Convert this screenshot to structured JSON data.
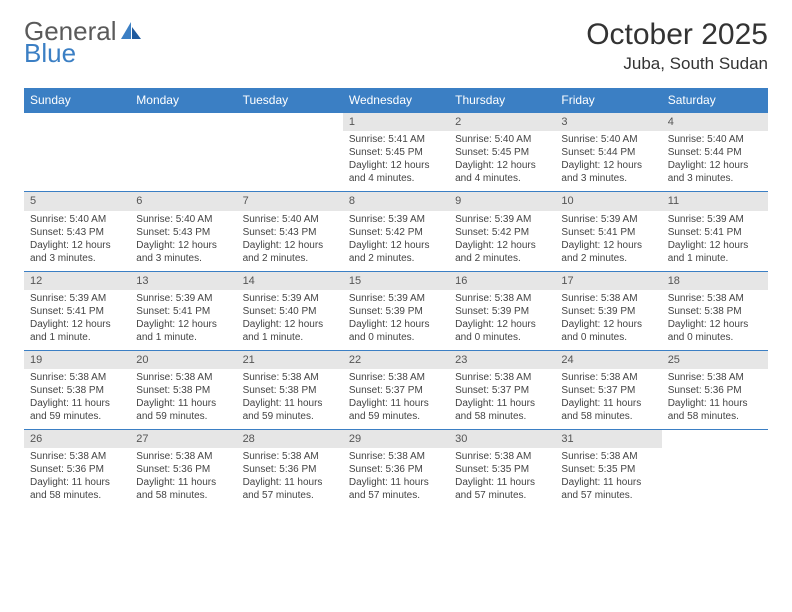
{
  "logo": {
    "line1": "General",
    "line2": "Blue"
  },
  "title": "October 2025",
  "location": "Juba, South Sudan",
  "colors": {
    "header_bg": "#3b7fc4",
    "header_fg": "#ffffff",
    "daynum_bg": "#e6e6e6",
    "divider": "#3b7fc4"
  },
  "weekdays": [
    "Sunday",
    "Monday",
    "Tuesday",
    "Wednesday",
    "Thursday",
    "Friday",
    "Saturday"
  ],
  "weeks": [
    [
      null,
      null,
      null,
      {
        "n": "1",
        "sunrise": "Sunrise: 5:41 AM",
        "sunset": "Sunset: 5:45 PM",
        "daylight": "Daylight: 12 hours and 4 minutes."
      },
      {
        "n": "2",
        "sunrise": "Sunrise: 5:40 AM",
        "sunset": "Sunset: 5:45 PM",
        "daylight": "Daylight: 12 hours and 4 minutes."
      },
      {
        "n": "3",
        "sunrise": "Sunrise: 5:40 AM",
        "sunset": "Sunset: 5:44 PM",
        "daylight": "Daylight: 12 hours and 3 minutes."
      },
      {
        "n": "4",
        "sunrise": "Sunrise: 5:40 AM",
        "sunset": "Sunset: 5:44 PM",
        "daylight": "Daylight: 12 hours and 3 minutes."
      }
    ],
    [
      {
        "n": "5",
        "sunrise": "Sunrise: 5:40 AM",
        "sunset": "Sunset: 5:43 PM",
        "daylight": "Daylight: 12 hours and 3 minutes."
      },
      {
        "n": "6",
        "sunrise": "Sunrise: 5:40 AM",
        "sunset": "Sunset: 5:43 PM",
        "daylight": "Daylight: 12 hours and 3 minutes."
      },
      {
        "n": "7",
        "sunrise": "Sunrise: 5:40 AM",
        "sunset": "Sunset: 5:43 PM",
        "daylight": "Daylight: 12 hours and 2 minutes."
      },
      {
        "n": "8",
        "sunrise": "Sunrise: 5:39 AM",
        "sunset": "Sunset: 5:42 PM",
        "daylight": "Daylight: 12 hours and 2 minutes."
      },
      {
        "n": "9",
        "sunrise": "Sunrise: 5:39 AM",
        "sunset": "Sunset: 5:42 PM",
        "daylight": "Daylight: 12 hours and 2 minutes."
      },
      {
        "n": "10",
        "sunrise": "Sunrise: 5:39 AM",
        "sunset": "Sunset: 5:41 PM",
        "daylight": "Daylight: 12 hours and 2 minutes."
      },
      {
        "n": "11",
        "sunrise": "Sunrise: 5:39 AM",
        "sunset": "Sunset: 5:41 PM",
        "daylight": "Daylight: 12 hours and 1 minute."
      }
    ],
    [
      {
        "n": "12",
        "sunrise": "Sunrise: 5:39 AM",
        "sunset": "Sunset: 5:41 PM",
        "daylight": "Daylight: 12 hours and 1 minute."
      },
      {
        "n": "13",
        "sunrise": "Sunrise: 5:39 AM",
        "sunset": "Sunset: 5:41 PM",
        "daylight": "Daylight: 12 hours and 1 minute."
      },
      {
        "n": "14",
        "sunrise": "Sunrise: 5:39 AM",
        "sunset": "Sunset: 5:40 PM",
        "daylight": "Daylight: 12 hours and 1 minute."
      },
      {
        "n": "15",
        "sunrise": "Sunrise: 5:39 AM",
        "sunset": "Sunset: 5:39 PM",
        "daylight": "Daylight: 12 hours and 0 minutes."
      },
      {
        "n": "16",
        "sunrise": "Sunrise: 5:38 AM",
        "sunset": "Sunset: 5:39 PM",
        "daylight": "Daylight: 12 hours and 0 minutes."
      },
      {
        "n": "17",
        "sunrise": "Sunrise: 5:38 AM",
        "sunset": "Sunset: 5:39 PM",
        "daylight": "Daylight: 12 hours and 0 minutes."
      },
      {
        "n": "18",
        "sunrise": "Sunrise: 5:38 AM",
        "sunset": "Sunset: 5:38 PM",
        "daylight": "Daylight: 12 hours and 0 minutes."
      }
    ],
    [
      {
        "n": "19",
        "sunrise": "Sunrise: 5:38 AM",
        "sunset": "Sunset: 5:38 PM",
        "daylight": "Daylight: 11 hours and 59 minutes."
      },
      {
        "n": "20",
        "sunrise": "Sunrise: 5:38 AM",
        "sunset": "Sunset: 5:38 PM",
        "daylight": "Daylight: 11 hours and 59 minutes."
      },
      {
        "n": "21",
        "sunrise": "Sunrise: 5:38 AM",
        "sunset": "Sunset: 5:38 PM",
        "daylight": "Daylight: 11 hours and 59 minutes."
      },
      {
        "n": "22",
        "sunrise": "Sunrise: 5:38 AM",
        "sunset": "Sunset: 5:37 PM",
        "daylight": "Daylight: 11 hours and 59 minutes."
      },
      {
        "n": "23",
        "sunrise": "Sunrise: 5:38 AM",
        "sunset": "Sunset: 5:37 PM",
        "daylight": "Daylight: 11 hours and 58 minutes."
      },
      {
        "n": "24",
        "sunrise": "Sunrise: 5:38 AM",
        "sunset": "Sunset: 5:37 PM",
        "daylight": "Daylight: 11 hours and 58 minutes."
      },
      {
        "n": "25",
        "sunrise": "Sunrise: 5:38 AM",
        "sunset": "Sunset: 5:36 PM",
        "daylight": "Daylight: 11 hours and 58 minutes."
      }
    ],
    [
      {
        "n": "26",
        "sunrise": "Sunrise: 5:38 AM",
        "sunset": "Sunset: 5:36 PM",
        "daylight": "Daylight: 11 hours and 58 minutes."
      },
      {
        "n": "27",
        "sunrise": "Sunrise: 5:38 AM",
        "sunset": "Sunset: 5:36 PM",
        "daylight": "Daylight: 11 hours and 58 minutes."
      },
      {
        "n": "28",
        "sunrise": "Sunrise: 5:38 AM",
        "sunset": "Sunset: 5:36 PM",
        "daylight": "Daylight: 11 hours and 57 minutes."
      },
      {
        "n": "29",
        "sunrise": "Sunrise: 5:38 AM",
        "sunset": "Sunset: 5:36 PM",
        "daylight": "Daylight: 11 hours and 57 minutes."
      },
      {
        "n": "30",
        "sunrise": "Sunrise: 5:38 AM",
        "sunset": "Sunset: 5:35 PM",
        "daylight": "Daylight: 11 hours and 57 minutes."
      },
      {
        "n": "31",
        "sunrise": "Sunrise: 5:38 AM",
        "sunset": "Sunset: 5:35 PM",
        "daylight": "Daylight: 11 hours and 57 minutes."
      },
      null
    ]
  ]
}
